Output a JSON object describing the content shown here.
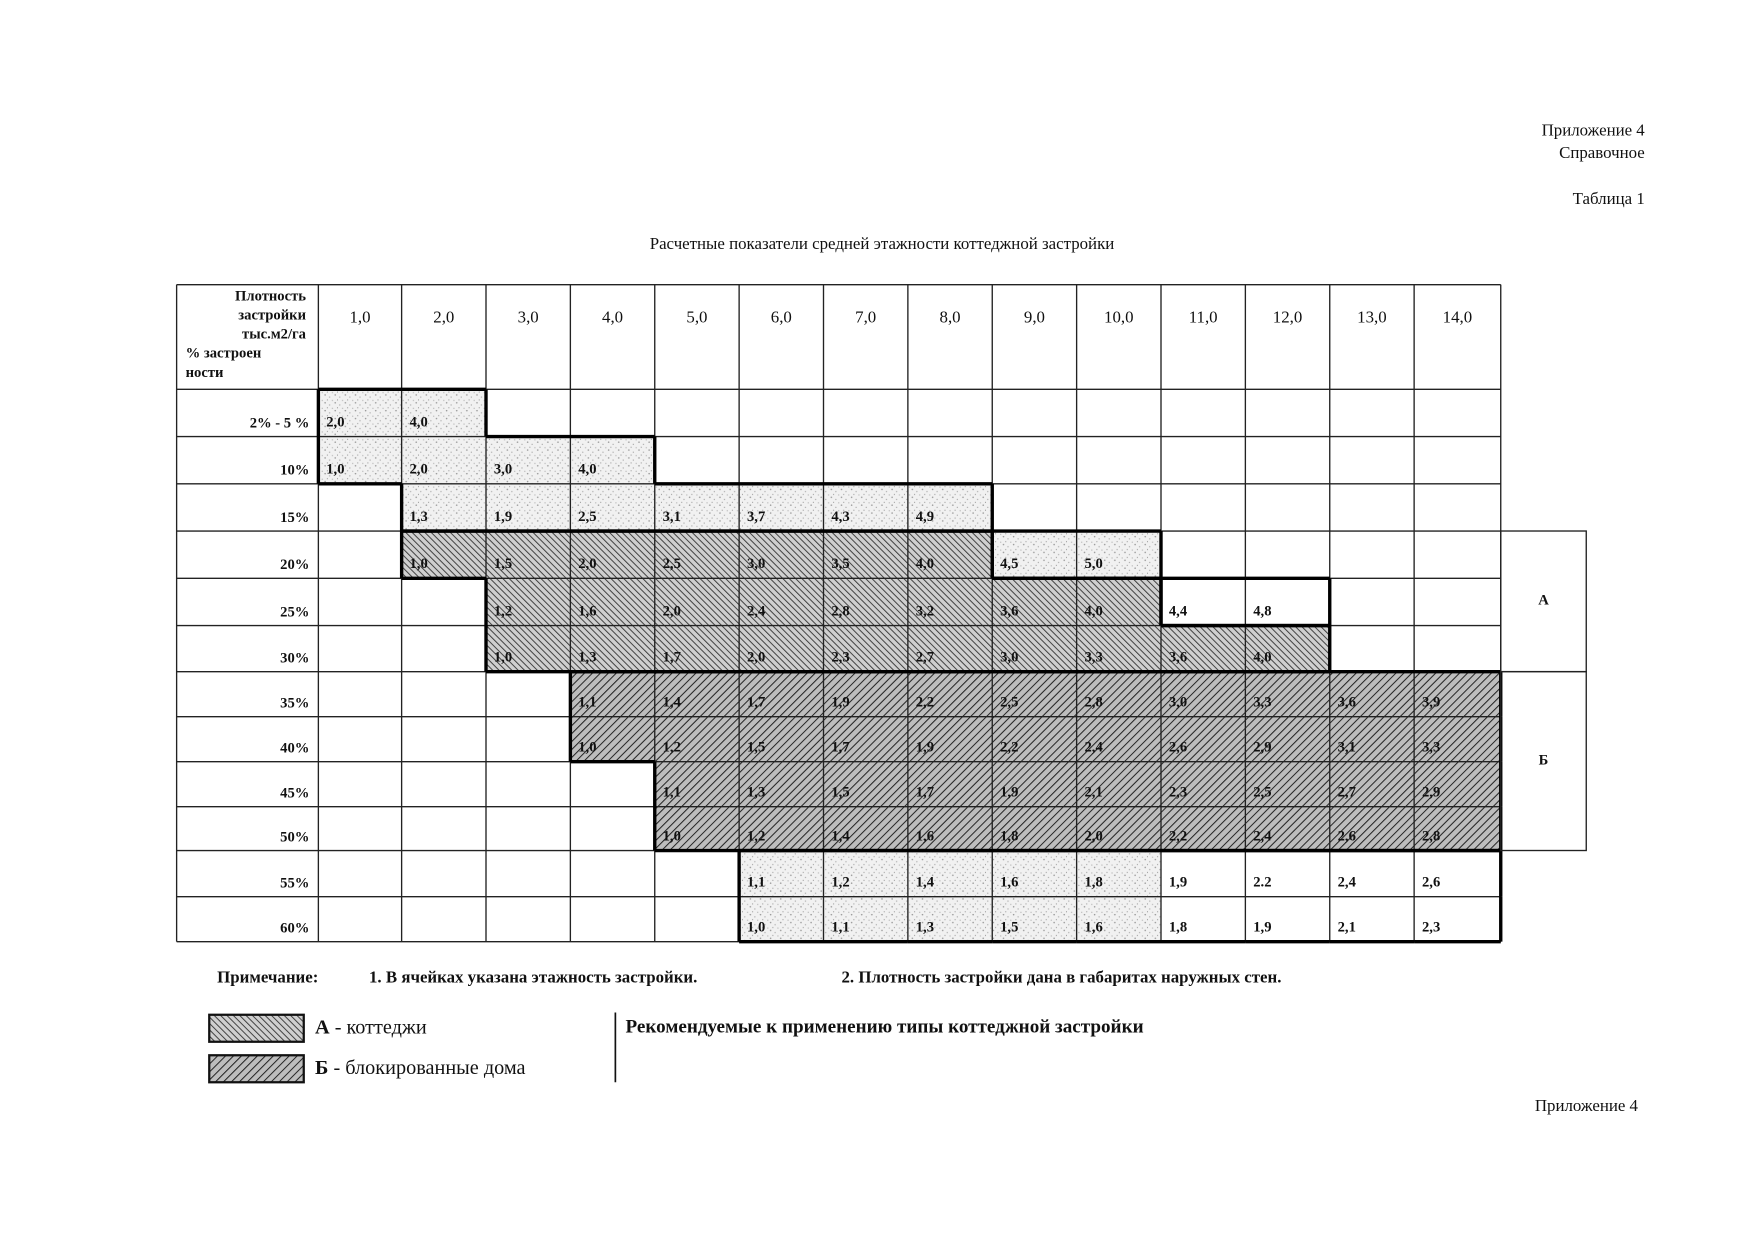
{
  "header": {
    "appendix": "Приложение 4",
    "kind": "Справочное",
    "table_no": "Таблица 1",
    "title": "Расчетные показатели средней этажности коттеджной застройки"
  },
  "table": {
    "corner": [
      "Плотность",
      "застройки",
      "тыс.м2/га",
      "% застроен",
      "ности"
    ],
    "columns": [
      "1,0",
      "2,0",
      "3,0",
      "4,0",
      "5,0",
      "6,0",
      "7,0",
      "8,0",
      "9,0",
      "10,0",
      "11,0",
      "12,0",
      "13,0",
      "14,0"
    ],
    "rows": [
      {
        "label": "2% - 5 %",
        "cells": [
          "2,0",
          "4,0",
          null,
          null,
          null,
          null,
          null,
          null,
          null,
          null,
          null,
          null,
          null,
          null
        ]
      },
      {
        "label": "10%",
        "cells": [
          "1,0",
          "2,0",
          "3,0",
          "4,0",
          null,
          null,
          null,
          null,
          null,
          null,
          null,
          null,
          null,
          null
        ]
      },
      {
        "label": "15%",
        "cells": [
          null,
          "1,3",
          "1,9",
          "2,5",
          "3,1",
          "3,7",
          "4,3",
          "4,9",
          null,
          null,
          null,
          null,
          null,
          null
        ]
      },
      {
        "label": "20%",
        "cells": [
          null,
          "1,0",
          "1,5",
          "2,0",
          "2,5",
          "3,0",
          "3,5",
          "4,0",
          "4,5",
          "5,0",
          null,
          null,
          null,
          null
        ]
      },
      {
        "label": "25%",
        "cells": [
          null,
          null,
          "1,2",
          "1,6",
          "2,0",
          "2,4",
          "2,8",
          "3,2",
          "3,6",
          "4,0",
          "4,4",
          "4,8",
          null,
          null
        ]
      },
      {
        "label": "30%",
        "cells": [
          null,
          null,
          "1,0",
          "1,3",
          "1,7",
          "2,0",
          "2,3",
          "2,7",
          "3,0",
          "3,3",
          "3,6",
          "4,0",
          null,
          null
        ]
      },
      {
        "label": "35%",
        "cells": [
          null,
          null,
          null,
          "1,1",
          "1,4",
          "1,7",
          "1,9",
          "2,2",
          "2,5",
          "2,8",
          "3,0",
          "3,3",
          "3,6",
          "3,9"
        ]
      },
      {
        "label": "40%",
        "cells": [
          null,
          null,
          null,
          "1,0",
          "1,2",
          "1,5",
          "1,7",
          "1,9",
          "2,2",
          "2,4",
          "2,6",
          "2,9",
          "3,1",
          "3,3"
        ]
      },
      {
        "label": "45%",
        "cells": [
          null,
          null,
          null,
          null,
          "1,1",
          "1,3",
          "1,5",
          "1,7",
          "1,9",
          "2,1",
          "2,3",
          "2,5",
          "2,7",
          "2,9"
        ]
      },
      {
        "label": "50%",
        "cells": [
          null,
          null,
          null,
          null,
          "1,0",
          "1,2",
          "1,4",
          "1,6",
          "1,8",
          "2,0",
          "2,2",
          "2,4",
          "2,6",
          "2,8"
        ]
      },
      {
        "label": "55%",
        "cells": [
          null,
          null,
          null,
          null,
          null,
          "1,1",
          "1,2",
          "1,4",
          "1,6",
          "1,8",
          "1,9",
          "2.2",
          "2,4",
          "2,6"
        ]
      },
      {
        "label": "60%",
        "cells": [
          null,
          null,
          null,
          null,
          null,
          "1,0",
          "1,1",
          "1,3",
          "1,5",
          "1,6",
          "1,8",
          "1,9",
          "2,1",
          "2,3"
        ]
      }
    ],
    "groups": [
      "А",
      "Б"
    ]
  },
  "notes": {
    "label": "Примечание:",
    "items": [
      "1. В ячейках указана этажность застройки.",
      "2. Плотность застройки дана в габаритах наружных стен."
    ]
  },
  "legend": {
    "items": [
      {
        "key": "А",
        "text": "- коттеджи"
      },
      {
        "key": "Б",
        "text": "- блокированные дома"
      }
    ],
    "caption": "Рекомендуемые к применению типы коттеджной застройки"
  },
  "footer": "Приложение 4"
}
